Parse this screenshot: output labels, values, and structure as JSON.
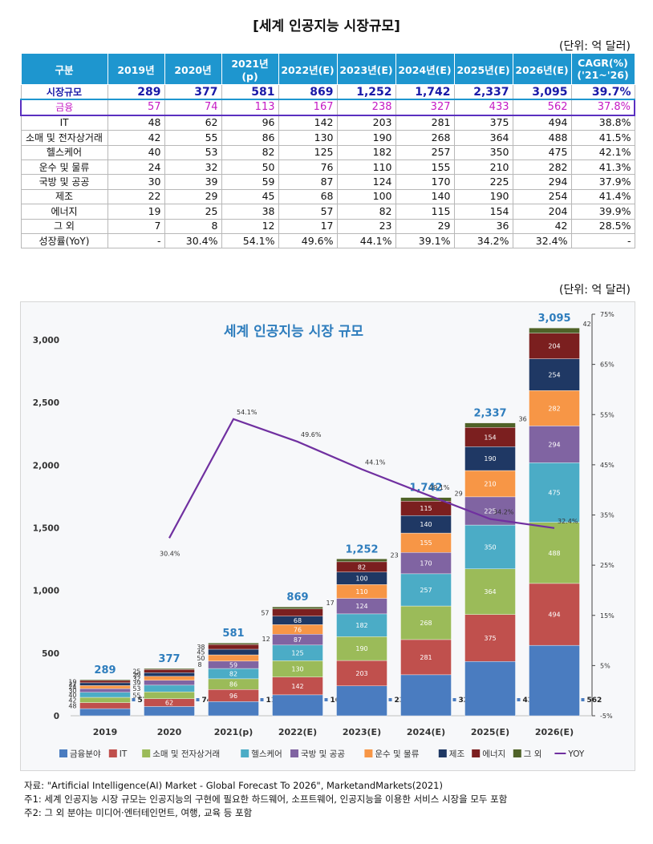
{
  "page_title": "[세계 인공지능 시장규모]",
  "unit_label": "(단위: 억 달러)",
  "table": {
    "headers": [
      "구분",
      "2019년",
      "2020년",
      "2021년(p)",
      "2022년(E)",
      "2023년(E)",
      "2024년(E)",
      "2025년(E)",
      "2026년(E)",
      "CAGR(%)\n('21~'26)"
    ],
    "rows": [
      {
        "label": "시장규모",
        "values": [
          "289",
          "377",
          "581",
          "869",
          "1,252",
          "1,742",
          "2,337",
          "3,095",
          "39.7%"
        ]
      },
      {
        "label": "금융",
        "values": [
          "57",
          "74",
          "113",
          "167",
          "238",
          "327",
          "433",
          "562",
          "37.8%"
        ]
      },
      {
        "label": "IT",
        "values": [
          "48",
          "62",
          "96",
          "142",
          "203",
          "281",
          "375",
          "494",
          "38.8%"
        ]
      },
      {
        "label": "소매 및 전자상거래",
        "values": [
          "42",
          "55",
          "86",
          "130",
          "190",
          "268",
          "364",
          "488",
          "41.5%"
        ]
      },
      {
        "label": "헬스케어",
        "values": [
          "40",
          "53",
          "82",
          "125",
          "182",
          "257",
          "350",
          "475",
          "42.1%"
        ]
      },
      {
        "label": "운수 및 물류",
        "values": [
          "24",
          "32",
          "50",
          "76",
          "110",
          "155",
          "210",
          "282",
          "41.3%"
        ]
      },
      {
        "label": "국방 및 공공",
        "values": [
          "30",
          "39",
          "59",
          "87",
          "124",
          "170",
          "225",
          "294",
          "37.9%"
        ]
      },
      {
        "label": "제조",
        "values": [
          "22",
          "29",
          "45",
          "68",
          "100",
          "140",
          "190",
          "254",
          "41.4%"
        ]
      },
      {
        "label": "에너지",
        "values": [
          "19",
          "25",
          "38",
          "57",
          "82",
          "115",
          "154",
          "204",
          "39.9%"
        ]
      },
      {
        "label": "그 외",
        "values": [
          "7",
          "8",
          "12",
          "17",
          "23",
          "29",
          "36",
          "42",
          "28.5%"
        ]
      },
      {
        "label": "성장률(YoY)",
        "values": [
          "-",
          "30.4%",
          "54.1%",
          "49.6%",
          "44.1%",
          "39.1%",
          "34.2%",
          "32.4%",
          "-"
        ]
      }
    ]
  },
  "chart_data": {
    "type": "bar",
    "stacked": true,
    "title": "세계 인공지능 시장 규모",
    "categories": [
      "2019",
      "2020",
      "2021(p)",
      "2022(E)",
      "2023(E)",
      "2024(E)",
      "2025(E)",
      "2026(E)"
    ],
    "series": [
      {
        "name": "금융분야",
        "color": "#4a7cc0",
        "values": [
          57,
          74,
          113,
          167,
          238,
          327,
          433,
          562
        ]
      },
      {
        "name": "IT",
        "color": "#c0504d",
        "values": [
          48,
          62,
          96,
          142,
          203,
          281,
          375,
          494
        ]
      },
      {
        "name": "소매 및 전자상거래",
        "color": "#9bbb59",
        "values": [
          42,
          55,
          86,
          130,
          190,
          268,
          364,
          488
        ]
      },
      {
        "name": "헬스케어",
        "color": "#4bacc6",
        "values": [
          40,
          53,
          82,
          125,
          182,
          257,
          350,
          475
        ]
      },
      {
        "name": "국방 및 공공",
        "color": "#8064a2",
        "values": [
          30,
          39,
          59,
          87,
          124,
          170,
          225,
          294
        ]
      },
      {
        "name": "운수 및 물류",
        "color": "#f79646",
        "values": [
          24,
          32,
          50,
          76,
          110,
          155,
          210,
          282
        ]
      },
      {
        "name": "제조",
        "color": "#1f3864",
        "values": [
          22,
          29,
          45,
          68,
          100,
          140,
          190,
          254
        ]
      },
      {
        "name": "에너지",
        "color": "#7b1f1f",
        "values": [
          19,
          25,
          38,
          57,
          82,
          115,
          154,
          204
        ]
      },
      {
        "name": "그 외",
        "color": "#4f6228",
        "values": [
          7,
          8,
          12,
          17,
          23,
          29,
          36,
          42
        ]
      }
    ],
    "totals": [
      289,
      377,
      581,
      869,
      1252,
      1742,
      2337,
      3095
    ],
    "total_labels": [
      "289",
      "377",
      "581",
      "869",
      "1,252",
      "1,742",
      "2,337",
      "3,095"
    ],
    "line": {
      "name": "YOY",
      "color": "#7030a0",
      "values": [
        null,
        30.4,
        54.1,
        49.6,
        44.1,
        39.1,
        34.2,
        32.4
      ],
      "labels": [
        "",
        "30.4%",
        "54.1%",
        "49.6%",
        "44.1%",
        "39.1%",
        "34.2%",
        "32.4%"
      ]
    },
    "y_left": {
      "min": 0,
      "max": 3000,
      "ticks": [
        0,
        500,
        1000,
        1500,
        2000,
        2500,
        3000
      ],
      "tick_labels": [
        "0",
        "500",
        "1,000",
        "1,500",
        "2,000",
        "2,500",
        "3,000"
      ]
    },
    "y_right": {
      "min": -5,
      "max": 75,
      "ticks": [
        -5,
        5,
        15,
        25,
        35,
        45,
        55,
        65,
        75
      ],
      "tick_labels": [
        "-5%",
        "5%",
        "15%",
        "25%",
        "35%",
        "45%",
        "55%",
        "65%",
        "75%"
      ]
    },
    "legend": [
      "금융분야",
      "IT",
      "소매 및 전자상거래",
      "헬스케어",
      "국방 및 공공",
      "운수 및 물류",
      "제조",
      "에너지",
      "그 외",
      "YOY"
    ],
    "legend_position": "bottom"
  },
  "notes": [
    "자료: \"Artificial Intelligence(AI) Market - Global Forecast To 2026\", MarketandMarkets(2021)",
    "주1: 세계 인공지능 시장 규모는 인공지능의 구현에 필요한 하드웨어, 소프트웨어, 인공지능을 이용한 서비스 시장을 모두 포함",
    "주2: 그 외 분야는 미디어·엔터테인먼트, 여행, 교육 등 포함"
  ]
}
